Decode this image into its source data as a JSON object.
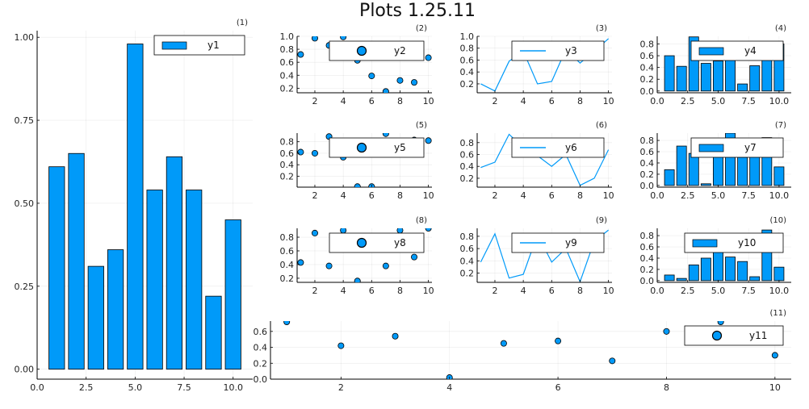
{
  "figure": {
    "title": "Plots 1.25.11",
    "series_color": "#009af9",
    "grid": true
  },
  "chart_data": [
    {
      "panel": "(1)",
      "type": "bar",
      "x": [
        1,
        2,
        3,
        4,
        5,
        6,
        7,
        8,
        9,
        10
      ],
      "values": [
        0.61,
        0.65,
        0.31,
        0.36,
        0.98,
        0.54,
        0.64,
        0.54,
        0.22,
        0.45
      ],
      "xlim": [
        0,
        11
      ],
      "ylim": [
        -0.03,
        1.02
      ],
      "xticks": [
        0,
        2.5,
        5,
        7.5,
        10
      ],
      "xtick_labels": [
        "0.0",
        "2.5",
        "5.0",
        "7.5",
        "10.0"
      ],
      "yticks": [
        0,
        0.25,
        0.5,
        0.75,
        1
      ],
      "ytick_labels": [
        "0.00",
        "0.25",
        "0.50",
        "0.75",
        "1.00"
      ],
      "legend": "y1",
      "legend_position": "top-right"
    },
    {
      "panel": "(2)",
      "type": "scatter",
      "x": [
        1,
        2,
        3,
        4,
        5,
        6,
        7,
        8,
        9,
        10
      ],
      "values": [
        0.72,
        0.97,
        0.86,
        0.99,
        0.63,
        0.39,
        0.15,
        0.32,
        0.29,
        0.67
      ],
      "xlim": [
        0.75,
        10.25
      ],
      "ylim": [
        0.13,
        1.0
      ],
      "xticks": [
        2,
        4,
        6,
        8,
        10
      ],
      "xtick_labels": [
        "2",
        "4",
        "6",
        "8",
        "10"
      ],
      "yticks": [
        0.2,
        0.4,
        0.6,
        0.8,
        1.0
      ],
      "ytick_labels": [
        "0.2",
        "0.4",
        "0.6",
        "0.8",
        "1.0"
      ],
      "legend": "y2",
      "legend_position": "top-right"
    },
    {
      "panel": "(3)",
      "type": "line",
      "x": [
        1,
        2,
        3,
        4,
        5,
        6,
        7,
        8,
        9,
        10
      ],
      "values": [
        0.2,
        0.08,
        0.58,
        0.75,
        0.2,
        0.24,
        0.78,
        0.55,
        0.75,
        0.96
      ],
      "xlim": [
        0.75,
        10.25
      ],
      "ylim": [
        0.05,
        1.0
      ],
      "xticks": [
        2,
        4,
        6,
        8,
        10
      ],
      "xtick_labels": [
        "2",
        "4",
        "6",
        "8",
        "10"
      ],
      "yticks": [
        0.2,
        0.4,
        0.6,
        0.8,
        1.0
      ],
      "ytick_labels": [
        "0.2",
        "0.4",
        "0.6",
        "0.8",
        "1.0"
      ],
      "legend": "y3",
      "legend_position": "top-right"
    },
    {
      "panel": "(4)",
      "type": "bar",
      "x": [
        1,
        2,
        3,
        4,
        5,
        6,
        7,
        8,
        9,
        10
      ],
      "values": [
        0.6,
        0.42,
        0.92,
        0.47,
        0.51,
        0.62,
        0.12,
        0.43,
        0.67,
        0.8
      ],
      "xlim": [
        0,
        11
      ],
      "ylim": [
        -0.03,
        0.93
      ],
      "xticks": [
        0,
        2.5,
        5,
        7.5,
        10
      ],
      "xtick_labels": [
        "0.0",
        "2.5",
        "5.0",
        "7.5",
        "10.0"
      ],
      "yticks": [
        0,
        0.2,
        0.4,
        0.6,
        0.8
      ],
      "ytick_labels": [
        "0.0",
        "0.2",
        "0.4",
        "0.6",
        "0.8"
      ],
      "legend": "y4",
      "legend_position": "top-right"
    },
    {
      "panel": "(5)",
      "type": "scatter",
      "x": [
        1,
        2,
        3,
        4,
        5,
        6,
        7,
        8,
        9,
        10
      ],
      "values": [
        0.62,
        0.6,
        0.89,
        0.53,
        0.02,
        0.02,
        0.94,
        0.72,
        0.83,
        0.82
      ],
      "xlim": [
        0.75,
        10.25
      ],
      "ylim": [
        0.01,
        0.95
      ],
      "xticks": [
        2,
        4,
        6,
        8,
        10
      ],
      "xtick_labels": [
        "2",
        "4",
        "6",
        "8",
        "10"
      ],
      "yticks": [
        0.2,
        0.4,
        0.6,
        0.8
      ],
      "ytick_labels": [
        "0.2",
        "0.4",
        "0.6",
        "0.8"
      ],
      "legend": "y5",
      "legend_position": "top-right"
    },
    {
      "panel": "(6)",
      "type": "line",
      "x": [
        1,
        2,
        3,
        4,
        5,
        6,
        7,
        8,
        9,
        10
      ],
      "values": [
        0.38,
        0.47,
        0.94,
        0.71,
        0.58,
        0.4,
        0.6,
        0.08,
        0.2,
        0.68
      ],
      "xlim": [
        0.75,
        10.25
      ],
      "ylim": [
        0.05,
        0.96
      ],
      "xticks": [
        2,
        4,
        6,
        8,
        10
      ],
      "xtick_labels": [
        "2",
        "4",
        "6",
        "8",
        "10"
      ],
      "yticks": [
        0.2,
        0.4,
        0.6,
        0.8
      ],
      "ytick_labels": [
        "0.2",
        "0.4",
        "0.6",
        "0.8"
      ],
      "legend": "y6",
      "legend_position": "top-right"
    },
    {
      "panel": "(7)",
      "type": "bar",
      "x": [
        1,
        2,
        3,
        4,
        5,
        6,
        7,
        8,
        9,
        10
      ],
      "values": [
        0.28,
        0.7,
        0.57,
        0.03,
        0.83,
        0.93,
        0.5,
        0.52,
        0.85,
        0.33
      ],
      "xlim": [
        0,
        11
      ],
      "ylim": [
        -0.03,
        0.93
      ],
      "xticks": [
        0,
        2.5,
        5,
        7.5,
        10
      ],
      "xtick_labels": [
        "0.0",
        "2.5",
        "5.0",
        "7.5",
        "10.0"
      ],
      "yticks": [
        0,
        0.2,
        0.4,
        0.6,
        0.8
      ],
      "ytick_labels": [
        "0.0",
        "0.2",
        "0.4",
        "0.6",
        "0.8"
      ],
      "legend": "y7",
      "legend_position": "top-right"
    },
    {
      "panel": "(8)",
      "type": "scatter",
      "x": [
        1,
        2,
        3,
        4,
        5,
        6,
        7,
        8,
        9,
        10
      ],
      "values": [
        0.43,
        0.86,
        0.38,
        0.9,
        0.16,
        0.72,
        0.38,
        0.9,
        0.51,
        0.93
      ],
      "xlim": [
        0.75,
        10.25
      ],
      "ylim": [
        0.14,
        0.93
      ],
      "xticks": [
        2,
        4,
        6,
        8,
        10
      ],
      "xtick_labels": [
        "2",
        "4",
        "6",
        "8",
        "10"
      ],
      "yticks": [
        0.2,
        0.4,
        0.6,
        0.8
      ],
      "ytick_labels": [
        "0.2",
        "0.4",
        "0.6",
        "0.8"
      ],
      "legend": "y8",
      "legend_position": "top-right"
    },
    {
      "panel": "(9)",
      "type": "line",
      "x": [
        1,
        2,
        3,
        4,
        5,
        6,
        7,
        8,
        9,
        10
      ],
      "values": [
        0.38,
        0.84,
        0.12,
        0.18,
        0.83,
        0.38,
        0.6,
        0.06,
        0.72,
        0.9
      ],
      "xlim": [
        0.75,
        10.25
      ],
      "ylim": [
        0.05,
        0.93
      ],
      "xticks": [
        2,
        4,
        6,
        8,
        10
      ],
      "xtick_labels": [
        "2",
        "4",
        "6",
        "8",
        "10"
      ],
      "yticks": [
        0.2,
        0.4,
        0.6,
        0.8
      ],
      "ytick_labels": [
        "0.2",
        "0.4",
        "0.6",
        "0.8"
      ],
      "legend": "y9",
      "legend_position": "top-right"
    },
    {
      "panel": "(10)",
      "type": "bar",
      "x": [
        1,
        2,
        3,
        4,
        5,
        6,
        7,
        8,
        9,
        10
      ],
      "values": [
        0.1,
        0.04,
        0.28,
        0.4,
        0.58,
        0.42,
        0.34,
        0.07,
        0.9,
        0.24
      ],
      "xlim": [
        0,
        11
      ],
      "ylim": [
        -0.03,
        0.93
      ],
      "xticks": [
        0,
        2.5,
        5,
        7.5,
        10
      ],
      "xtick_labels": [
        "0.0",
        "2.5",
        "5.0",
        "7.5",
        "10.0"
      ],
      "yticks": [
        0,
        0.2,
        0.4,
        0.6,
        0.8
      ],
      "ytick_labels": [
        "0.0",
        "0.2",
        "0.4",
        "0.6",
        "0.8"
      ],
      "legend": "y10",
      "legend_position": "top-right"
    },
    {
      "panel": "(11)",
      "type": "scatter",
      "x": [
        1,
        2,
        3,
        4,
        5,
        6,
        7,
        8,
        9,
        10
      ],
      "values": [
        0.72,
        0.42,
        0.54,
        0.02,
        0.45,
        0.48,
        0.23,
        0.6,
        0.72,
        0.3
      ],
      "xlim": [
        0.7,
        10.3
      ],
      "ylim": [
        0.0,
        0.73
      ],
      "xticks": [
        2,
        4,
        6,
        8,
        10
      ],
      "xtick_labels": [
        "2",
        "4",
        "6",
        "8",
        "10"
      ],
      "yticks": [
        0,
        0.2,
        0.4,
        0.6
      ],
      "ytick_labels": [
        "0.0",
        "0.2",
        "0.4",
        "0.6"
      ],
      "legend": "y11",
      "legend_position": "top-right"
    }
  ]
}
